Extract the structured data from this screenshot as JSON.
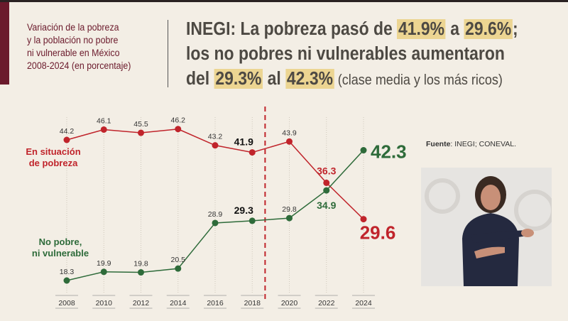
{
  "subtitle": [
    "Variación de la pobreza",
    "y la población no pobre",
    "ni vulnerable en México",
    "2008-2024 (en porcentaje)"
  ],
  "headline": {
    "l1a": "INEGI: La pobreza pasó de ",
    "l1b": "41.9%",
    "l1c": " a ",
    "l1d": "29.6%",
    "l1e": ";",
    "l2": "los no pobres ni vulnerables aumentaron",
    "l3a": "del ",
    "l3b": "29.3%",
    "l3c": " al ",
    "l3d": "42.3%",
    "l3e": " (clase media y los más ricos)"
  },
  "source": {
    "label": "Fuente",
    "text": ": INEGI; CONEVAL."
  },
  "colors": {
    "poverty": "#c0242b",
    "non_poor": "#2e6b3a",
    "highlight": "#ecd592",
    "brand": "#6b1a2c"
  },
  "chart_data": {
    "type": "line",
    "x": [
      "2008",
      "2010",
      "2012",
      "2014",
      "2016",
      "2018",
      "2020",
      "2022",
      "2024"
    ],
    "series": [
      {
        "name": "En situación de pobreza",
        "name_lines": [
          "En situación",
          "de pobreza"
        ],
        "values": [
          44.2,
          46.1,
          45.5,
          46.2,
          43.2,
          41.9,
          43.9,
          36.3,
          29.6
        ]
      },
      {
        "name": "No pobre, ni vulnerable",
        "name_lines": [
          "No pobre,",
          "ni vulnerable"
        ],
        "values": [
          18.3,
          19.9,
          19.8,
          20.5,
          28.9,
          29.3,
          29.8,
          34.9,
          42.3
        ]
      }
    ],
    "ylim": [
      15,
      48
    ],
    "vertical_marker": {
      "between": [
        "2018",
        "2020"
      ],
      "style": "dashed",
      "color": "#c0242b"
    },
    "grid": "vertical dotted",
    "data_labels": true
  },
  "interpreter": {
    "icon": "sign-language-interpreter-video"
  }
}
